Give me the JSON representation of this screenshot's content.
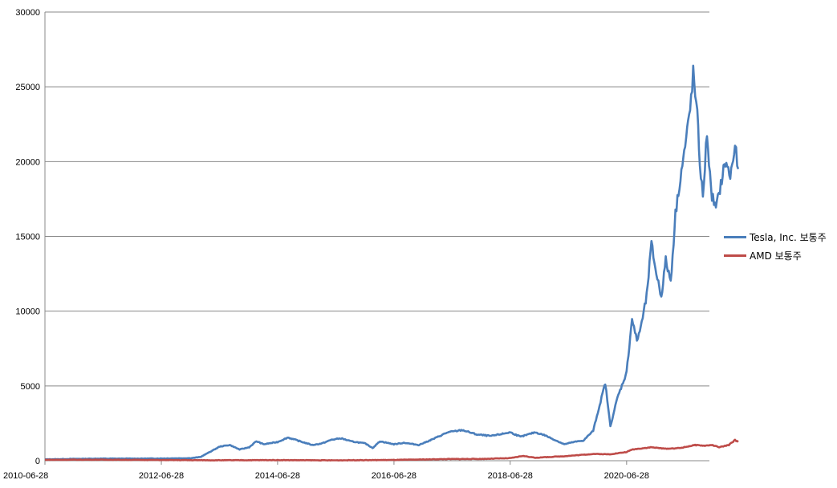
{
  "chart_data": {
    "type": "line",
    "title": "",
    "xlabel": "",
    "ylabel": "",
    "ylim": [
      0,
      30000
    ],
    "yticks": [
      0,
      5000,
      10000,
      15000,
      20000,
      25000,
      30000
    ],
    "xlim": [
      "2010-06-28",
      "2021-11-30"
    ],
    "xticks": [
      "2010-06-28",
      "2012-06-28",
      "2014-06-28",
      "2016-06-28",
      "2018-06-28",
      "2020-06-28"
    ],
    "grid": "horizontal",
    "legend_position": "right",
    "series": [
      {
        "name": "Tesla, Inc. 보통주",
        "color": "#4a7ebb",
        "points": [
          [
            "2010-06-28",
            90
          ],
          [
            "2011-01-01",
            120
          ],
          [
            "2011-06-01",
            140
          ],
          [
            "2012-01-01",
            140
          ],
          [
            "2012-06-28",
            150
          ],
          [
            "2013-01-01",
            170
          ],
          [
            "2013-03-01",
            250
          ],
          [
            "2013-05-01",
            600
          ],
          [
            "2013-07-01",
            950
          ],
          [
            "2013-09-01",
            1050
          ],
          [
            "2013-11-01",
            750
          ],
          [
            "2014-01-01",
            900
          ],
          [
            "2014-02-15",
            1300
          ],
          [
            "2014-04-01",
            1100
          ],
          [
            "2014-06-28",
            1250
          ],
          [
            "2014-09-01",
            1550
          ],
          [
            "2014-12-01",
            1250
          ],
          [
            "2015-02-01",
            1050
          ],
          [
            "2015-04-01",
            1150
          ],
          [
            "2015-06-01",
            1400
          ],
          [
            "2015-08-01",
            1500
          ],
          [
            "2015-10-01",
            1300
          ],
          [
            "2016-01-01",
            1150
          ],
          [
            "2016-02-15",
            850
          ],
          [
            "2016-04-01",
            1300
          ],
          [
            "2016-06-28",
            1100
          ],
          [
            "2016-09-01",
            1200
          ],
          [
            "2016-12-01",
            1050
          ],
          [
            "2017-03-01",
            1450
          ],
          [
            "2017-06-01",
            1900
          ],
          [
            "2017-09-01",
            2050
          ],
          [
            "2017-12-01",
            1750
          ],
          [
            "2018-03-01",
            1650
          ],
          [
            "2018-06-28",
            1900
          ],
          [
            "2018-09-01",
            1600
          ],
          [
            "2018-12-01",
            1900
          ],
          [
            "2019-02-01",
            1700
          ],
          [
            "2019-04-01",
            1400
          ],
          [
            "2019-06-03",
            1100
          ],
          [
            "2019-08-01",
            1250
          ],
          [
            "2019-10-01",
            1350
          ],
          [
            "2019-12-01",
            2000
          ],
          [
            "2020-02-15",
            5200
          ],
          [
            "2020-03-18",
            2300
          ],
          [
            "2020-05-01",
            4200
          ],
          [
            "2020-06-28",
            5900
          ],
          [
            "2020-08-01",
            9500
          ],
          [
            "2020-09-01",
            8000
          ],
          [
            "2020-10-01",
            9200
          ],
          [
            "2020-11-01",
            11000
          ],
          [
            "2020-12-01",
            14500
          ],
          [
            "2021-01-01",
            12500
          ],
          [
            "2021-02-01",
            11000
          ],
          [
            "2021-03-01",
            13400
          ],
          [
            "2021-04-01",
            12000
          ],
          [
            "2021-05-01",
            16500
          ],
          [
            "2021-06-01",
            19000
          ],
          [
            "2021-07-01",
            21000
          ],
          [
            "2021-08-01",
            23500
          ],
          [
            "2021-08-20",
            25900
          ],
          [
            "2021-09-15",
            23000
          ],
          [
            "2021-10-01",
            20000
          ],
          [
            "2021-10-20",
            17500
          ],
          [
            "2021-11-15",
            22000
          ],
          [
            "2021-12-10",
            18000
          ],
          [
            "2022-01-10",
            16800
          ],
          [
            "2022-02-10",
            18500
          ],
          [
            "2022-03-10",
            20000
          ],
          [
            "2022-04-10",
            19000
          ],
          [
            "2022-05-10",
            21000
          ],
          [
            "2022-05-30",
            19500
          ]
        ]
      },
      {
        "name": "AMD 보통주",
        "color": "#be4b48",
        "points": [
          [
            "2010-06-28",
            60
          ],
          [
            "2011-06-01",
            70
          ],
          [
            "2012-06-28",
            45
          ],
          [
            "2013-06-01",
            30
          ],
          [
            "2014-06-28",
            40
          ],
          [
            "2015-06-01",
            25
          ],
          [
            "2016-06-28",
            50
          ],
          [
            "2017-06-01",
            110
          ],
          [
            "2018-01-01",
            120
          ],
          [
            "2018-06-28",
            170
          ],
          [
            "2018-09-15",
            320
          ],
          [
            "2018-12-01",
            200
          ],
          [
            "2019-06-01",
            300
          ],
          [
            "2019-12-01",
            450
          ],
          [
            "2020-03-15",
            430
          ],
          [
            "2020-06-28",
            580
          ],
          [
            "2020-08-01",
            750
          ],
          [
            "2020-12-01",
            900
          ],
          [
            "2021-03-01",
            800
          ],
          [
            "2021-06-01",
            850
          ],
          [
            "2021-09-01",
            1050
          ],
          [
            "2021-11-01",
            1000
          ],
          [
            "2021-12-15",
            1050
          ],
          [
            "2022-02-01",
            900
          ],
          [
            "2022-04-01",
            1050
          ],
          [
            "2022-05-10",
            1380
          ],
          [
            "2022-05-30",
            1250
          ]
        ]
      }
    ]
  }
}
